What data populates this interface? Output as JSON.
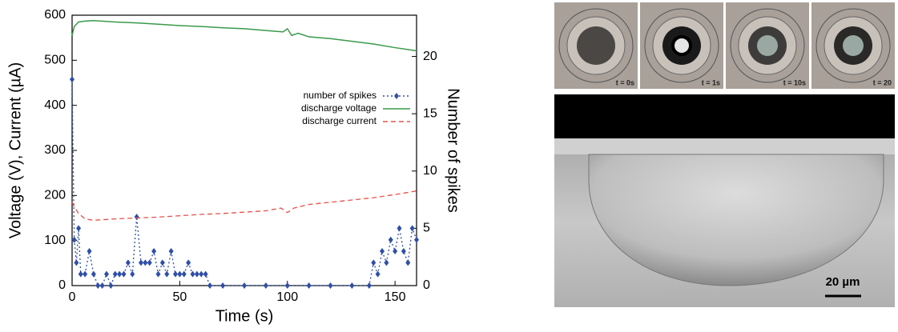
{
  "chart_data": {
    "type": "line",
    "xlabel": "Time (s)",
    "ylabel": "Voltage (V), Current (µA)",
    "y2label": "Number of spikes",
    "xlim": [
      0,
      160
    ],
    "xticks": [
      0,
      50,
      100,
      150
    ],
    "ylim": [
      0,
      600
    ],
    "yticks": [
      0,
      100,
      200,
      300,
      400,
      500,
      600
    ],
    "y2lim": [
      0,
      23.6
    ],
    "y2ticks": [
      0,
      5,
      10,
      15,
      20
    ],
    "series": [
      {
        "name": "number of spikes",
        "color": "#2f4fa6",
        "axis": "y2",
        "style": "dotted-diamond",
        "x": [
          0,
          1,
          2,
          3,
          4,
          6,
          8,
          10,
          12,
          14,
          16,
          18,
          20,
          22,
          24,
          26,
          28,
          30,
          32,
          34,
          36,
          38,
          40,
          42,
          44,
          46,
          48,
          50,
          52,
          54,
          56,
          58,
          60,
          62,
          64,
          70,
          80,
          90,
          100,
          110,
          120,
          130,
          138,
          140,
          142,
          144,
          146,
          148,
          150,
          152,
          154,
          156,
          158,
          160
        ],
        "values": [
          18,
          4,
          2,
          5,
          1,
          1,
          3,
          1,
          0,
          0,
          1,
          0,
          1,
          1,
          1,
          2,
          1,
          6,
          2,
          2,
          2,
          3,
          1,
          2,
          1,
          3,
          1,
          1,
          1,
          2,
          1,
          1,
          1,
          1,
          0,
          0,
          0,
          0,
          0,
          0,
          0,
          0,
          0,
          2,
          1,
          3,
          2,
          4,
          3,
          5,
          3,
          2,
          5,
          4
        ]
      },
      {
        "name": "discharge voltage",
        "color": "#3a9a4a",
        "style": "solid",
        "x": [
          0,
          1,
          3,
          6,
          10,
          20,
          30,
          40,
          50,
          60,
          70,
          80,
          90,
          98,
          100,
          102,
          105,
          110,
          120,
          130,
          140,
          150,
          160
        ],
        "values": [
          555,
          575,
          585,
          587,
          588,
          585,
          583,
          580,
          577,
          575,
          572,
          570,
          566,
          563,
          570,
          555,
          560,
          552,
          548,
          542,
          536,
          528,
          521
        ]
      },
      {
        "name": "discharge current",
        "color": "#e8524a",
        "style": "dashed",
        "x": [
          0,
          1,
          3,
          6,
          10,
          20,
          30,
          40,
          50,
          60,
          70,
          80,
          90,
          97,
          100,
          103,
          110,
          120,
          130,
          140,
          150,
          160
        ],
        "values": [
          185,
          175,
          160,
          148,
          145,
          148,
          150,
          152,
          155,
          158,
          160,
          163,
          166,
          172,
          162,
          172,
          180,
          185,
          190,
          195,
          202,
          210
        ]
      }
    ]
  },
  "photos": {
    "labels": [
      "t = 0s",
      "t = 1s",
      "t = 10s",
      "t = 20"
    ],
    "scale_bar": "20 µm"
  }
}
